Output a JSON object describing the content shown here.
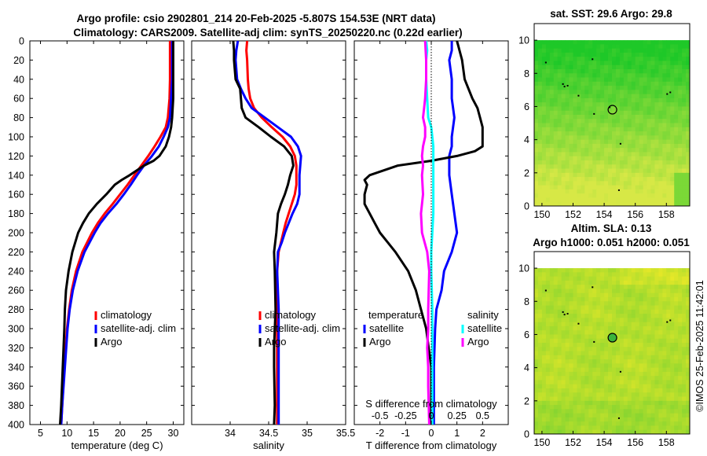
{
  "title": {
    "line1": "Argo profile: csio 2902801_214 20-Feb-2025 -5.807S 154.53E (NRT data)",
    "line2": "Climatology: CARS2009. Satellite-adj clim: synTS_20250220.nc (0.22d earlier)"
  },
  "footer_text": "©IMOS 25-Feb-2025 11:42:01",
  "colors": {
    "climatology": "#ff0000",
    "satellite": "#0000ff",
    "argo": "#000000",
    "salinity_satellite": "#00ffff",
    "salinity_argo": "#ff00ff"
  },
  "chart_data": [
    {
      "type": "line",
      "name": "temperature-profile",
      "xlabel": "temperature (deg C)",
      "ylabel": "",
      "xlim": [
        3,
        32
      ],
      "ylim": [
        400,
        0
      ],
      "xticks": [
        "5",
        "10",
        "15",
        "20",
        "25",
        "30"
      ],
      "xtick_values": [
        5,
        10,
        15,
        20,
        25,
        30
      ],
      "yticks": [
        "0",
        "20",
        "40",
        "60",
        "80",
        "100",
        "120",
        "140",
        "160",
        "180",
        "200",
        "220",
        "240",
        "260",
        "280",
        "300",
        "320",
        "340",
        "360",
        "380",
        "400"
      ],
      "legend": [
        "climatology",
        "satellite-adj. clim",
        "Argo"
      ],
      "legend_position": "lower-right",
      "series": [
        {
          "name": "climatology",
          "depth": [
            0,
            40,
            60,
            80,
            90,
            100,
            110,
            120,
            130,
            140,
            150,
            160,
            170,
            180,
            190,
            200,
            220,
            240,
            260,
            280,
            300,
            340,
            380,
            400
          ],
          "values": [
            29.4,
            29.4,
            29.3,
            29.0,
            28.6,
            27.6,
            26.5,
            25.3,
            24.0,
            22.7,
            21.4,
            20.0,
            18.6,
            17.1,
            15.8,
            14.7,
            12.9,
            11.7,
            10.9,
            10.4,
            10.0,
            9.5,
            9.1,
            8.9
          ]
        },
        {
          "name": "satellite-adj. clim",
          "depth": [
            0,
            40,
            60,
            80,
            90,
            100,
            110,
            120,
            130,
            140,
            150,
            160,
            170,
            180,
            190,
            200,
            220,
            240,
            260,
            280,
            300,
            340,
            380,
            400
          ],
          "values": [
            29.8,
            29.8,
            29.6,
            29.4,
            29.0,
            28.2,
            27.3,
            26.0,
            24.5,
            23.2,
            22.0,
            20.7,
            19.3,
            17.7,
            16.3,
            15.2,
            13.3,
            12.0,
            11.1,
            10.5,
            10.1,
            9.6,
            9.1,
            8.9
          ]
        },
        {
          "name": "Argo",
          "depth": [
            0,
            40,
            60,
            80,
            90,
            100,
            110,
            120,
            125,
            130,
            140,
            145,
            150,
            160,
            170,
            180,
            190,
            200,
            220,
            240,
            260,
            280,
            300,
            340,
            380,
            400
          ],
          "values": [
            30.0,
            30.0,
            30.0,
            29.8,
            29.6,
            29.2,
            28.6,
            27.4,
            26.3,
            24.5,
            21.8,
            20.3,
            19.0,
            17.4,
            15.6,
            14.1,
            13.0,
            12.1,
            11.0,
            10.3,
            9.8,
            9.6,
            9.5,
            9.2,
            8.9,
            8.7
          ]
        }
      ]
    },
    {
      "type": "line",
      "name": "salinity-profile",
      "xlabel": "salinity",
      "ylabel": "",
      "xlim": [
        33.5,
        35.5
      ],
      "ylim": [
        400,
        0
      ],
      "xticks": [
        "34",
        "34.5",
        "35",
        "35.5"
      ],
      "xtick_values": [
        34,
        34.5,
        35,
        35.5
      ],
      "legend": [
        "climatology",
        "satellite-adj. clim",
        "Argo"
      ],
      "legend_position": "lower-right",
      "series": [
        {
          "name": "climatology",
          "depth": [
            0,
            10,
            20,
            40,
            50,
            60,
            70,
            80,
            90,
            100,
            110,
            120,
            130,
            140,
            150,
            160,
            170,
            180,
            190,
            200,
            210,
            220,
            240,
            280,
            320,
            360,
            400
          ],
          "values": [
            34.22,
            34.21,
            34.22,
            34.23,
            34.24,
            34.26,
            34.31,
            34.41,
            34.54,
            34.68,
            34.78,
            34.84,
            34.86,
            34.86,
            34.86,
            34.84,
            34.8,
            34.76,
            34.72,
            34.69,
            34.66,
            34.63,
            34.61,
            34.61,
            34.61,
            34.61,
            34.61
          ]
        },
        {
          "name": "satellite-adj. clim",
          "depth": [
            0,
            10,
            20,
            40,
            50,
            60,
            70,
            80,
            90,
            100,
            110,
            120,
            130,
            140,
            150,
            160,
            170,
            180,
            190,
            200,
            210,
            220,
            240,
            280,
            320,
            360,
            400
          ],
          "values": [
            34.1,
            34.08,
            34.07,
            34.09,
            34.14,
            34.2,
            34.28,
            34.45,
            34.62,
            34.79,
            34.88,
            34.92,
            34.91,
            34.9,
            34.9,
            34.9,
            34.87,
            34.81,
            34.76,
            34.71,
            34.67,
            34.62,
            34.61,
            34.63,
            34.63,
            34.63,
            34.63
          ]
        },
        {
          "name": "Argo",
          "depth": [
            0,
            10,
            20,
            30,
            40,
            50,
            60,
            70,
            80,
            90,
            100,
            110,
            120,
            130,
            140,
            150,
            160,
            170,
            180,
            190,
            200,
            220,
            240,
            280,
            320,
            340,
            380,
            400
          ],
          "values": [
            34.04,
            34.05,
            34.05,
            34.06,
            34.07,
            34.13,
            34.14,
            34.15,
            34.2,
            34.37,
            34.53,
            34.7,
            34.8,
            34.82,
            34.78,
            34.75,
            34.71,
            34.66,
            34.62,
            34.61,
            34.6,
            34.57,
            34.58,
            34.59,
            34.57,
            34.57,
            34.58,
            34.57
          ]
        }
      ]
    },
    {
      "type": "line",
      "name": "difference-profile",
      "xlabel": "T difference from climatology",
      "x2label": "S difference from climatology",
      "xlim": [
        -3,
        3
      ],
      "ylim": [
        400,
        0
      ],
      "xticks": [
        "-2",
        "-1",
        "0",
        "1",
        "2"
      ],
      "xtick_values": [
        -2,
        -1,
        0,
        1,
        2
      ],
      "x2ticks": [
        "-0.5",
        "-0.25",
        "0",
        "0.25",
        "0.5"
      ],
      "x2tick_values": [
        -0.5,
        -0.25,
        0,
        0.25,
        0.5
      ],
      "legend_temperature_header": "temperature",
      "legend_salinity_header": "salinity",
      "legend_temperature": [
        "satellite",
        "Argo"
      ],
      "legend_salinity": [
        "satellite",
        "Argo"
      ],
      "legend_position": "lower",
      "series": [
        {
          "name": "temperature satellite",
          "depth": [
            0,
            10,
            20,
            40,
            60,
            80,
            100,
            110,
            120,
            140,
            160,
            180,
            200,
            220,
            240,
            260,
            280,
            300,
            340,
            400
          ],
          "values": [
            0.8,
            0.8,
            0.7,
            0.8,
            0.8,
            0.9,
            0.8,
            0.8,
            0.7,
            0.7,
            0.8,
            0.9,
            1.0,
            0.8,
            0.5,
            0.4,
            0.2,
            0.15,
            0.1,
            0.1
          ]
        },
        {
          "name": "temperature Argo",
          "depth": [
            0,
            20,
            40,
            60,
            70,
            80,
            90,
            100,
            110,
            115,
            120,
            125,
            130,
            140,
            145,
            150,
            160,
            170,
            180,
            190,
            200,
            210,
            220,
            240,
            260,
            280,
            300,
            320,
            340,
            400
          ],
          "values": [
            1.0,
            1.2,
            1.3,
            1.6,
            1.8,
            1.9,
            2.0,
            2.0,
            2.0,
            1.7,
            1.0,
            0.0,
            -1.3,
            -2.4,
            -2.6,
            -2.5,
            -2.6,
            -2.6,
            -2.4,
            -2.2,
            -2.0,
            -1.7,
            -1.4,
            -0.9,
            -0.6,
            -0.4,
            -0.2,
            -0.1,
            0.0,
            0.0
          ]
        },
        {
          "name": "salinity satellite",
          "depth": [
            0,
            10,
            20,
            40,
            60,
            80,
            90,
            100,
            110,
            120,
            140,
            160,
            180,
            200,
            220,
            240,
            280,
            320,
            400
          ],
          "values": [
            -0.05,
            -0.04,
            -0.05,
            -0.05,
            -0.04,
            -0.03,
            0.0,
            0.01,
            0.02,
            0.02,
            0.02,
            0.02,
            0.02,
            0.01,
            0.0,
            0.0,
            0.01,
            0.01,
            0.01
          ]
        },
        {
          "name": "salinity Argo",
          "depth": [
            0,
            20,
            40,
            60,
            70,
            80,
            90,
            100,
            110,
            120,
            130,
            140,
            160,
            180,
            200,
            220,
            240,
            280,
            300,
            320,
            340,
            360,
            400
          ],
          "values": [
            -0.06,
            -0.05,
            -0.05,
            -0.06,
            -0.07,
            -0.08,
            -0.06,
            -0.06,
            -0.08,
            -0.09,
            -0.08,
            -0.09,
            -0.08,
            -0.1,
            -0.09,
            -0.04,
            -0.02,
            -0.03,
            -0.03,
            -0.04,
            -0.03,
            -0.03,
            -0.02
          ]
        }
      ]
    },
    {
      "type": "heatmap",
      "name": "sst-map",
      "title": "sat. SST: 29.6 Argo: 29.8",
      "xlim": [
        149.5,
        159.5
      ],
      "ylim": [
        0,
        11
      ],
      "xticks": [
        "150",
        "152",
        "154",
        "156",
        "158"
      ],
      "xtick_values": [
        150,
        152,
        154,
        156,
        158
      ],
      "yticks": [
        "0",
        "2",
        "4",
        "6",
        "8",
        "10"
      ],
      "ytick_values": [
        0,
        2,
        4,
        6,
        8,
        10
      ],
      "data_extent_y": [
        0,
        10
      ],
      "argo_position": [
        154.53,
        5.807
      ]
    },
    {
      "type": "heatmap",
      "name": "sla-map",
      "title": "Altim. SLA: 0.13",
      "subtitle": "Argo h1000: 0.051 h2000: 0.051",
      "xlim": [
        149.5,
        159.5
      ],
      "ylim": [
        0,
        11
      ],
      "xticks": [
        "150",
        "152",
        "154",
        "156",
        "158"
      ],
      "xtick_values": [
        150,
        152,
        154,
        156,
        158
      ],
      "yticks": [
        "0",
        "2",
        "4",
        "6",
        "8",
        "10"
      ],
      "ytick_values": [
        0,
        2,
        4,
        6,
        8,
        10
      ],
      "data_extent_y": [
        0,
        10
      ],
      "argo_position": [
        154.53,
        5.807
      ]
    }
  ]
}
